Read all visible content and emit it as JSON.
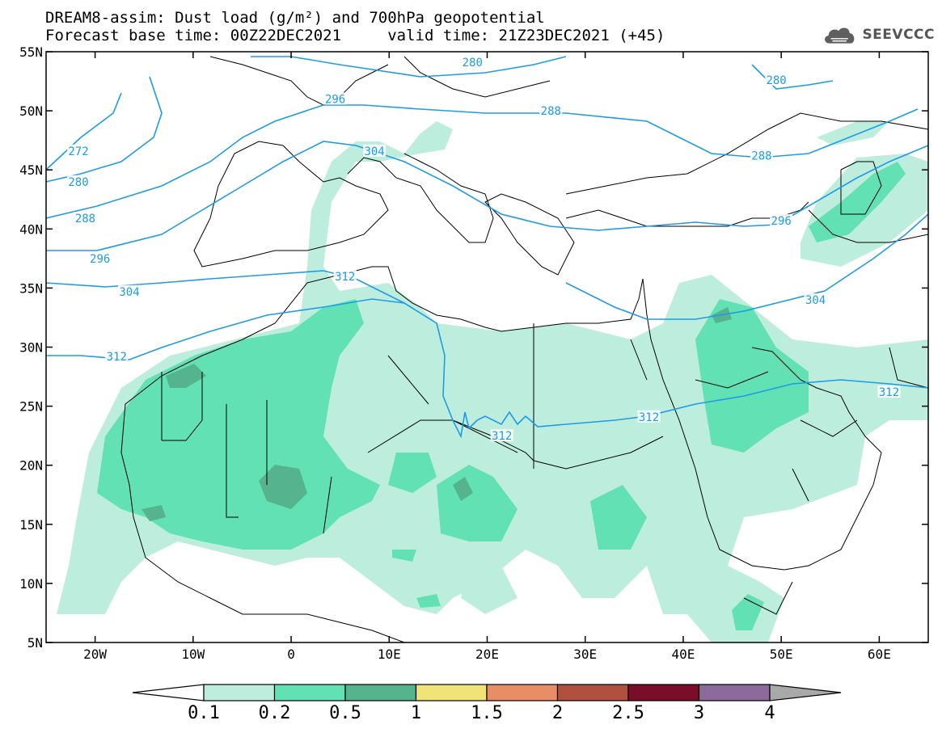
{
  "header": {
    "title_line1": "DREAM8-assim: Dust load (g/m²) and 700hPa geopotential",
    "title_line2": "Forecast base time: 00Z22DEC2021     valid time: 21Z23DEC2021 (+45)",
    "logo_text": "SEEVCCC"
  },
  "axes": {
    "lat_labels": [
      "55N",
      "50N",
      "45N",
      "40N",
      "35N",
      "30N",
      "25N",
      "20N",
      "15N",
      "10N",
      "5N"
    ],
    "lon_labels": [
      "20W",
      "10W",
      "0",
      "10E",
      "20E",
      "30E",
      "40E",
      "50E",
      "60E"
    ]
  },
  "contour_labels": [
    {
      "text": "280",
      "lon": 18.5,
      "lat": 54.1
    },
    {
      "text": "296",
      "lon": 4.5,
      "lat": 51.0
    },
    {
      "text": "288",
      "lon": 26.5,
      "lat": 50.0
    },
    {
      "text": "280",
      "lon": 49.5,
      "lat": 52.6
    },
    {
      "text": "288",
      "lon": 48.0,
      "lat": 46.2
    },
    {
      "text": "304",
      "lon": 8.5,
      "lat": 46.6
    },
    {
      "text": "272",
      "lon": -21.7,
      "lat": 46.6
    },
    {
      "text": "280",
      "lon": -21.7,
      "lat": 44.0
    },
    {
      "text": "288",
      "lon": -21.0,
      "lat": 40.9
    },
    {
      "text": "296",
      "lon": -19.5,
      "lat": 37.5
    },
    {
      "text": "304",
      "lon": -16.5,
      "lat": 34.7
    },
    {
      "text": "312",
      "lon": 5.5,
      "lat": 36.0
    },
    {
      "text": "296",
      "lon": 50.0,
      "lat": 40.7
    },
    {
      "text": "304",
      "lon": 53.5,
      "lat": 34.0
    },
    {
      "text": "312",
      "lon": -17.8,
      "lat": 29.2
    },
    {
      "text": "312",
      "lon": 61.0,
      "lat": 26.2
    },
    {
      "text": "312",
      "lon": 36.5,
      "lat": 24.1
    },
    {
      "text": "312",
      "lon": 21.5,
      "lat": 22.5
    }
  ],
  "colorbar": {
    "labels": [
      "0.1",
      "0.2",
      "0.5",
      "1",
      "1.5",
      "2",
      "2.5",
      "3",
      "4"
    ],
    "colors": [
      "#bdeedd",
      "#62e1b4",
      "#55b38e",
      "#f0e478",
      "#e88e66",
      "#b0503e",
      "#7a0e2a",
      "#8c6a9c"
    ],
    "upper_arrow_color": "#a9a9a9",
    "lower_arrow_color": "#ffffff"
  },
  "style": {
    "contour_color": "#1e9be8",
    "coast_color": "#000000"
  }
}
